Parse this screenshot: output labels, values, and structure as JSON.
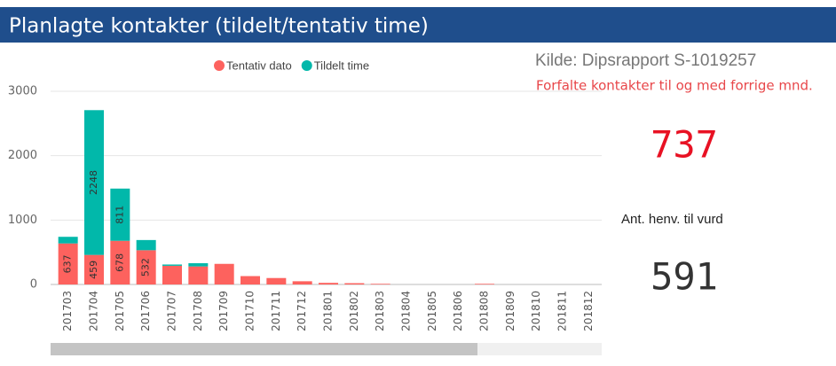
{
  "header": {
    "title": "Planlagte kontakter (tildelt/tentativ time)"
  },
  "chart_data": {
    "type": "stacked_bar",
    "categories": [
      "201703",
      "201704",
      "201705",
      "201706",
      "201707",
      "201708",
      "201709",
      "201710",
      "201711",
      "201712",
      "201801",
      "201802",
      "201803",
      "201804",
      "201805",
      "201806",
      "201808",
      "201809",
      "201810",
      "201811",
      "201812"
    ],
    "series": [
      {
        "name": "Tentativ dato",
        "color": "#fd625e",
        "values": [
          637,
          459,
          678,
          532,
          290,
          280,
          320,
          130,
          100,
          50,
          25,
          20,
          10,
          0,
          0,
          0,
          10,
          0,
          0,
          0,
          0
        ]
      },
      {
        "name": "Tildelt time",
        "color": "#01b8aa",
        "values": [
          103,
          2248,
          811,
          158,
          20,
          50,
          0,
          0,
          0,
          0,
          0,
          0,
          0,
          0,
          0,
          0,
          0,
          0,
          0,
          0,
          0
        ]
      }
    ],
    "ylim": [
      0,
      3000
    ],
    "yticks": [
      0,
      1000,
      2000,
      3000
    ],
    "grid": true,
    "legend": "top"
  },
  "source": "Kilde: Dipsrapport S-1019257",
  "overdue": {
    "label": "Forfalte kontakter til og med forrige mnd.",
    "value": 737
  },
  "referrals": {
    "label": "Ant. henv. til vurd",
    "value": 591
  }
}
